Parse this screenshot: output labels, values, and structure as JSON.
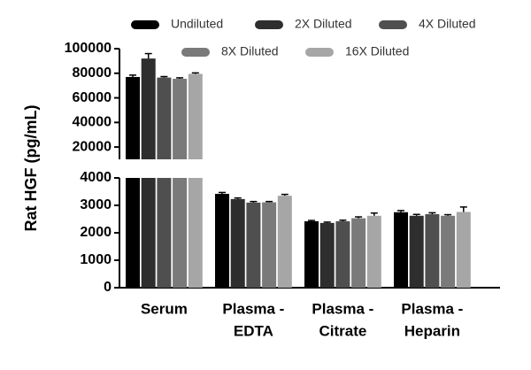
{
  "chart_data": {
    "type": "bar",
    "y_label": "Rat HGF (pg/mL)",
    "categories": [
      [
        "Serum"
      ],
      [
        "Plasma -",
        "EDTA"
      ],
      [
        "Plasma -",
        "Citrate"
      ],
      [
        "Plasma -",
        "Heparin"
      ]
    ],
    "axis_segments": [
      {
        "ylim": [
          0,
          4000
        ],
        "yticks": [
          0,
          1000,
          2000,
          3000,
          4000
        ]
      },
      {
        "ylim": [
          10000,
          100000
        ],
        "yticks": [
          20000,
          40000,
          60000,
          80000,
          100000
        ]
      }
    ],
    "series": [
      {
        "name": "Undiluted",
        "color": "#000000",
        "values": [
          77000,
          3420,
          2420,
          2750
        ],
        "errors": [
          1500,
          50,
          30,
          60
        ]
      },
      {
        "name": "2X Diluted",
        "color": "#2e2e2e",
        "values": [
          92000,
          3230,
          2360,
          2620
        ],
        "errors": [
          4000,
          40,
          30,
          50
        ]
      },
      {
        "name": "4X Diluted",
        "color": "#4f4f4f",
        "values": [
          76500,
          3100,
          2420,
          2680
        ],
        "errors": [
          800,
          40,
          40,
          50
        ]
      },
      {
        "name": "8X Diluted",
        "color": "#7a7a7a",
        "values": [
          75500,
          3110,
          2530,
          2620
        ],
        "errors": [
          800,
          30,
          50,
          40
        ]
      },
      {
        "name": "16X Diluted",
        "color": "#a6a6a6",
        "values": [
          79500,
          3350,
          2620,
          2760
        ],
        "errors": [
          800,
          50,
          100,
          180
        ]
      }
    ]
  }
}
